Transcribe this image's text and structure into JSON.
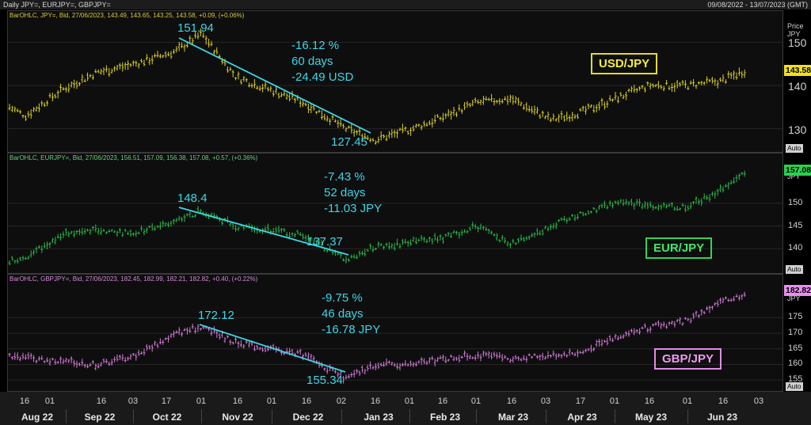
{
  "header": {
    "title": "Daily JPY=, EURJPY=, GBPJPY=",
    "date_range": "09/08/2022 - 13/07/2023 (GMT)"
  },
  "colors": {
    "usd": "#d8cf22",
    "eur": "#27b84a",
    "gbp": "#d27ad8",
    "annotation": "#3bd7e6"
  },
  "panels": [
    {
      "info": "BarOHLC, JPY=, Bid, 27/06/2023, 143.49, 143.65, 143.25, 143.58, +0.09, (+0.06%)",
      "label": "USD/JPY",
      "last": "143.58",
      "auto": "Auto",
      "axis_title": "Price\nJPY",
      "peak": "151.94",
      "trough": "127.45",
      "stats": [
        "-16.12 %",
        "60 days",
        "-24.49 USD"
      ]
    },
    {
      "info": "BarOHLC, EURJPY=, Bid, 27/06/2023, 156.51, 157.09, 156.38, 157.08, +0.57, (+0.36%)",
      "label": "EUR/JPY",
      "last": "157.08",
      "auto": "Auto",
      "axis_title": "JPY",
      "peak": "148.4",
      "trough": "137.37",
      "stats": [
        "-7.43 %",
        "52 days",
        "-11.03 JPY"
      ]
    },
    {
      "info": "BarOHLC, GBPJPY=, Bid, 27/06/2023, 182.45, 182.99, 182.21, 182.82, +0.40, (+0.22%)",
      "label": "GBP/JPY",
      "last": "182.82",
      "auto": "Auto",
      "axis_title": "JPY",
      "peak": "172.12",
      "trough": "155.34",
      "stats": [
        "-9.75 %",
        "46 days",
        "-16.78 JPY"
      ]
    }
  ],
  "chart_data": [
    {
      "type": "line",
      "style": "ohlc-bars",
      "series": [
        {
          "name": "USD/JPY",
          "x": [
            "2022-08-09",
            "2022-08-16",
            "2022-09-01",
            "2022-09-16",
            "2022-10-03",
            "2022-10-21",
            "2022-11-01",
            "2022-11-16",
            "2022-12-01",
            "2022-12-16",
            "2023-01-03",
            "2023-01-16",
            "2023-02-01",
            "2023-02-16",
            "2023-03-01",
            "2023-03-16",
            "2023-04-03",
            "2023-04-17",
            "2023-05-01",
            "2023-05-16",
            "2023-06-01",
            "2023-06-16",
            "2023-06-27"
          ],
          "values": [
            135,
            133,
            139,
            143,
            145,
            148,
            151.94,
            142,
            139,
            136,
            130,
            127.45,
            130,
            133,
            136,
            137,
            132,
            134,
            137,
            140,
            140,
            141,
            143.58
          ]
        }
      ],
      "yticks": [
        130,
        135,
        140,
        145,
        150
      ],
      "ytick_labels": [
        "130",
        "140",
        "150"
      ],
      "ylim": [
        125,
        155
      ]
    },
    {
      "type": "line",
      "style": "ohlc-bars",
      "series": [
        {
          "name": "EUR/JPY",
          "x": [
            "2022-08-09",
            "2022-08-16",
            "2022-09-01",
            "2022-09-16",
            "2022-10-03",
            "2022-10-21",
            "2022-11-01",
            "2022-11-16",
            "2022-12-01",
            "2022-12-16",
            "2023-01-03",
            "2023-01-16",
            "2023-02-01",
            "2023-02-16",
            "2023-03-01",
            "2023-03-16",
            "2023-04-03",
            "2023-04-17",
            "2023-05-01",
            "2023-05-16",
            "2023-06-01",
            "2023-06-16",
            "2023-06-27"
          ],
          "values": [
            137.5,
            138,
            143,
            144,
            143.5,
            146,
            148.4,
            145,
            144,
            143,
            137.37,
            140.5,
            141.5,
            142.5,
            145,
            141,
            145,
            148,
            150,
            149.5,
            149,
            153,
            157.08
          ]
        }
      ],
      "ytick_labels": [
        "140",
        "145",
        "150"
      ],
      "ylim": [
        135,
        159
      ]
    },
    {
      "type": "line",
      "style": "ohlc-bars",
      "series": [
        {
          "name": "GBP/JPY",
          "x": [
            "2022-08-09",
            "2022-08-16",
            "2022-09-01",
            "2022-09-16",
            "2022-10-03",
            "2022-10-21",
            "2022-11-01",
            "2022-11-16",
            "2022-12-01",
            "2022-12-16",
            "2023-01-03",
            "2023-01-16",
            "2023-02-01",
            "2023-02-16",
            "2023-03-01",
            "2023-03-16",
            "2023-04-03",
            "2023-04-17",
            "2023-05-01",
            "2023-05-16",
            "2023-06-01",
            "2023-06-16",
            "2023-06-27"
          ],
          "values": [
            163,
            162,
            161,
            160,
            163,
            170,
            172.12,
            167,
            165,
            163,
            155.34,
            160,
            160,
            162,
            163,
            162,
            163,
            164,
            169,
            172,
            174,
            180,
            182.82
          ]
        }
      ],
      "ytick_labels": [
        "155",
        "160",
        "165",
        "170",
        "175"
      ],
      "ylim": [
        152,
        186
      ]
    }
  ],
  "xaxis": {
    "day_ticks": [
      "16",
      "01",
      "16",
      "03",
      "17",
      "01",
      "16",
      "01",
      "16",
      "02",
      "16",
      "01",
      "16",
      "01",
      "16",
      "03",
      "17",
      "01",
      "16",
      "01",
      "16",
      "03"
    ],
    "months": [
      "Aug 22",
      "Sep 22",
      "Oct 22",
      "Nov 22",
      "Dec 22",
      "Jan 23",
      "Feb 23",
      "Mar 23",
      "Apr 23",
      "May 23",
      "Jun 23"
    ]
  }
}
